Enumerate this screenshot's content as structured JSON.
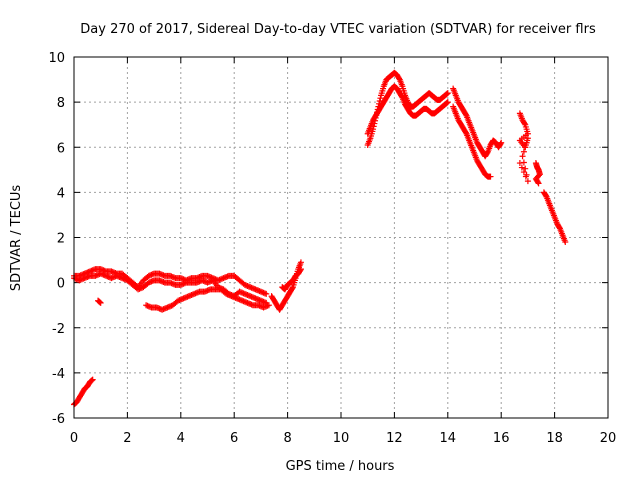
{
  "chart_data": {
    "type": "scatter",
    "title": "Day 270 of 2017, Sidereal Day-to-day VTEC variation (SDTVAR) for receiver flrs",
    "xlabel": "GPS time / hours",
    "ylabel": "SDTVAR / TECUs",
    "xlim": [
      0,
      20
    ],
    "ylim": [
      -6,
      10
    ],
    "xticks": [
      "0",
      "2",
      "4",
      "6",
      "8",
      "10",
      "12",
      "14",
      "16",
      "18",
      "20"
    ],
    "yticks": [
      "-6",
      "-4",
      "-2",
      "0",
      "2",
      "4",
      "6",
      "8",
      "10"
    ],
    "grid": true,
    "marker": "+",
    "series": [
      {
        "name": "SDTVAR",
        "color": "#ff0000",
        "segments": [
          {
            "x": [
              0.0,
              0.1,
              0.2,
              0.3,
              0.4,
              0.5,
              0.6,
              0.7
            ],
            "y": [
              -5.4,
              -5.3,
              -5.1,
              -4.9,
              -4.7,
              -4.6,
              -4.4,
              -4.3
            ]
          },
          {
            "x": [
              0.0,
              0.2,
              0.4,
              0.6,
              0.8,
              1.0,
              1.2,
              1.4,
              1.6,
              1.8,
              2.0,
              2.2,
              2.4,
              2.6,
              2.8,
              3.0,
              3.2,
              3.4,
              3.6,
              3.8,
              4.0,
              4.2,
              4.4,
              4.6,
              4.8,
              5.0,
              5.2,
              5.4,
              5.6,
              5.8,
              6.0,
              6.2,
              6.4,
              6.6,
              6.8,
              7.0,
              7.2
            ],
            "y": [
              0.3,
              0.3,
              0.4,
              0.5,
              0.6,
              0.6,
              0.5,
              0.5,
              0.4,
              0.4,
              0.2,
              0.0,
              -0.2,
              0.1,
              0.3,
              0.4,
              0.4,
              0.3,
              0.3,
              0.2,
              0.2,
              0.1,
              0.2,
              0.2,
              0.3,
              0.3,
              0.2,
              0.1,
              0.2,
              0.3,
              0.3,
              0.1,
              -0.1,
              -0.2,
              -0.3,
              -0.4,
              -0.5
            ]
          },
          {
            "x": [
              0.0,
              0.2,
              0.4,
              0.6,
              0.8,
              1.0,
              1.2,
              1.4,
              1.6,
              1.8,
              2.0,
              2.2,
              2.4,
              2.6,
              2.8,
              3.0,
              3.2,
              3.4,
              3.6,
              3.8,
              4.0,
              4.2,
              4.4,
              4.6,
              4.8,
              5.0,
              5.2,
              5.4,
              5.6,
              5.8,
              6.0,
              6.2,
              6.4,
              6.6,
              6.8,
              7.0,
              7.2
            ],
            "y": [
              0.2,
              0.1,
              0.2,
              0.3,
              0.3,
              0.4,
              0.3,
              0.2,
              0.3,
              0.2,
              0.1,
              -0.1,
              -0.3,
              -0.2,
              0.0,
              0.1,
              0.1,
              0.0,
              0.0,
              -0.1,
              -0.1,
              0.0,
              0.0,
              0.0,
              0.1,
              0.0,
              0.1,
              -0.2,
              -0.3,
              -0.5,
              -0.6,
              -0.4,
              -0.5,
              -0.6,
              -0.7,
              -0.8,
              -0.9
            ]
          },
          {
            "x": [
              2.7,
              2.9,
              3.1,
              3.3,
              3.5,
              3.7,
              3.9,
              4.1,
              4.3,
              4.5,
              4.7,
              4.9,
              5.1,
              5.3,
              5.5,
              5.7,
              5.9,
              6.1,
              6.3,
              6.5,
              6.7,
              6.9,
              7.1,
              7.3
            ],
            "y": [
              -1.0,
              -1.1,
              -1.1,
              -1.2,
              -1.1,
              -1.0,
              -0.8,
              -0.7,
              -0.6,
              -0.5,
              -0.4,
              -0.4,
              -0.3,
              -0.3,
              -0.3,
              -0.5,
              -0.6,
              -0.7,
              -0.8,
              -0.9,
              -1.0,
              -1.0,
              -1.1,
              -1.0
            ]
          },
          {
            "x": [
              0.9,
              1.0
            ],
            "y": [
              -0.8,
              -0.9
            ]
          },
          {
            "x": [
              7.4,
              7.5,
              7.6,
              7.7,
              7.8,
              7.9,
              8.0,
              8.1,
              8.2,
              8.3,
              8.4,
              8.5
            ],
            "y": [
              -0.6,
              -0.8,
              -1.0,
              -1.2,
              -1.0,
              -0.8,
              -0.6,
              -0.4,
              -0.2,
              0.2,
              0.6,
              0.9
            ]
          },
          {
            "x": [
              7.8,
              7.9,
              8.0,
              8.1,
              8.2,
              8.3,
              8.4,
              8.5
            ],
            "y": [
              -0.2,
              -0.3,
              -0.1,
              0.0,
              0.1,
              0.3,
              0.4,
              0.6
            ]
          },
          {
            "x": [
              11.0,
              11.1,
              11.2,
              11.3,
              11.4,
              11.5,
              11.6,
              11.7,
              11.8,
              11.9,
              12.0,
              12.1,
              12.2,
              12.3,
              12.4,
              12.5,
              12.6,
              12.7,
              12.8,
              12.9,
              13.0,
              13.1,
              13.2,
              13.3,
              13.4,
              13.5,
              13.6,
              13.7,
              13.8,
              13.9,
              14.0
            ],
            "y": [
              6.1,
              6.4,
              6.8,
              7.3,
              7.8,
              8.3,
              8.7,
              9.0,
              9.1,
              9.2,
              9.3,
              9.2,
              9.0,
              8.7,
              8.3,
              8.0,
              7.8,
              7.8,
              7.9,
              8.0,
              8.1,
              8.2,
              8.3,
              8.4,
              8.3,
              8.2,
              8.1,
              8.1,
              8.2,
              8.3,
              8.4
            ]
          },
          {
            "x": [
              11.0,
              11.1,
              11.2,
              11.3,
              11.4,
              11.5,
              11.6,
              11.7,
              11.8,
              11.9,
              12.0,
              12.1,
              12.2,
              12.3,
              12.4,
              12.5,
              12.6,
              12.7,
              12.8,
              12.9,
              13.0,
              13.1,
              13.2,
              13.3,
              13.4,
              13.5,
              13.6,
              13.7,
              13.8,
              13.9,
              14.0
            ],
            "y": [
              6.6,
              6.9,
              7.2,
              7.4,
              7.6,
              7.8,
              8.0,
              8.2,
              8.4,
              8.6,
              8.7,
              8.6,
              8.4,
              8.2,
              7.9,
              7.7,
              7.5,
              7.4,
              7.4,
              7.5,
              7.6,
              7.7,
              7.7,
              7.6,
              7.5,
              7.5,
              7.6,
              7.7,
              7.8,
              7.9,
              8.0
            ]
          },
          {
            "x": [
              14.2,
              14.3,
              14.4,
              14.5,
              14.6,
              14.7,
              14.8,
              14.9,
              15.0,
              15.1,
              15.2,
              15.3,
              15.4,
              15.5,
              15.6,
              15.7,
              15.8,
              15.9,
              16.0
            ],
            "y": [
              8.6,
              8.3,
              8.0,
              7.8,
              7.6,
              7.4,
              7.1,
              6.8,
              6.5,
              6.2,
              6.0,
              5.8,
              5.6,
              5.8,
              6.1,
              6.3,
              6.2,
              6.0,
              6.2
            ]
          },
          {
            "x": [
              14.2,
              14.3,
              14.4,
              14.5,
              14.6,
              14.7,
              14.8,
              14.9,
              15.0,
              15.1,
              15.2,
              15.3,
              15.4,
              15.5,
              15.6
            ],
            "y": [
              7.8,
              7.5,
              7.2,
              7.0,
              6.8,
              6.6,
              6.3,
              6.0,
              5.7,
              5.4,
              5.2,
              5.0,
              4.8,
              4.7,
              4.7
            ]
          },
          {
            "x": [
              16.7,
              16.8,
              16.9,
              17.0,
              16.7,
              16.9,
              17.0,
              16.8,
              17.0,
              16.7
            ],
            "y": [
              7.5,
              7.2,
              7.0,
              6.6,
              6.3,
              6.0,
              6.4,
              5.6,
              4.5,
              5.3
            ]
          },
          {
            "x": [
              17.3,
              17.35,
              17.4,
              17.45,
              17.3,
              17.4
            ],
            "y": [
              5.3,
              5.1,
              5.0,
              4.8,
              4.6,
              4.4
            ]
          },
          {
            "x": [
              17.6,
              17.7,
              17.8,
              17.9,
              18.0,
              18.1,
              18.2,
              18.3,
              18.4
            ],
            "y": [
              4.0,
              3.8,
              3.5,
              3.2,
              2.9,
              2.6,
              2.4,
              2.1,
              1.8
            ]
          }
        ]
      }
    ]
  }
}
